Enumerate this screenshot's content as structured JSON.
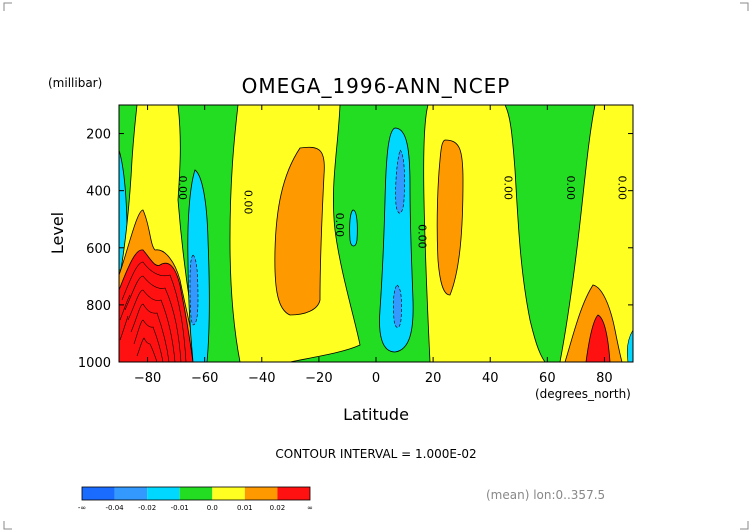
{
  "chart_data": {
    "type": "heatmap",
    "title": "OMEGA_1996-ANN_NCEP",
    "units_label": "(millibar)",
    "ylabel": "Level",
    "xlabel": "Latitude",
    "xunits_label": "(degrees_north)",
    "xlim": [
      -90,
      90
    ],
    "ylim": [
      1000,
      100
    ],
    "x_ticks": [
      -80,
      -60,
      -40,
      -20,
      0,
      20,
      40,
      60,
      80
    ],
    "y_ticks": [
      200,
      400,
      600,
      800,
      1000
    ],
    "contour_interval": "CONTOUR INTERVAL = 1.000E-02",
    "contour_labels": [
      {
        "text": "0.00",
        "lat": -68,
        "lev": 390
      },
      {
        "text": "0.00",
        "lat": -45,
        "lev": 440
      },
      {
        "text": "0.00",
        "lat": -13,
        "lev": 520
      },
      {
        "text": "0.00",
        "lat": 16,
        "lev": 560
      },
      {
        "text": "0.00",
        "lat": 46,
        "lev": 390
      },
      {
        "text": "0.00",
        "lat": 68,
        "lev": 390
      },
      {
        "text": "0.00",
        "lat": 86,
        "lev": 390
      }
    ],
    "colorbar": {
      "colors": [
        "#1a6bff",
        "#3399ff",
        "#00d8ff",
        "#22dd22",
        "#ffff22",
        "#ff9900",
        "#ff1111"
      ],
      "labels": [
        "-∞",
        "-0.04",
        "-0.02",
        "-0.01",
        "0.0",
        "0.01",
        "0.02",
        "∞"
      ]
    },
    "footnote": "(mean) lon:0..357.5"
  }
}
